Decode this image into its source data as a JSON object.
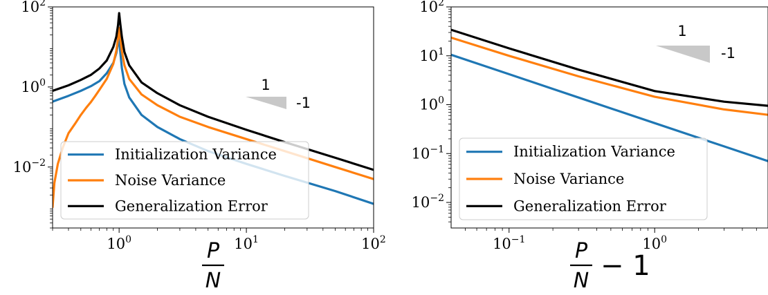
{
  "chart_data": [
    {
      "type": "line",
      "scale": {
        "x": "log",
        "y": "log"
      },
      "xlim": [
        0.3,
        100
      ],
      "ylim": [
        0.0003,
        100
      ],
      "xlabel": {
        "numerator": "P",
        "denominator": "N",
        "suffix": ""
      },
      "x_ticks": [
        {
          "value": 1,
          "base": "10",
          "exp": "0"
        },
        {
          "value": 10,
          "base": "10",
          "exp": "1"
        },
        {
          "value": 100,
          "base": "10",
          "exp": "2"
        }
      ],
      "y_ticks": [
        {
          "value": 100,
          "base": "10",
          "exp": "2"
        },
        {
          "value": 1,
          "base": "10",
          "exp": "0"
        },
        {
          "value": 0.01,
          "base": "10",
          "exp": "−2"
        }
      ],
      "series": [
        {
          "name": "Initialization Variance",
          "color": "#1f77b4",
          "x": [
            0.3,
            0.4,
            0.5,
            0.6,
            0.7,
            0.8,
            0.9,
            0.95,
            0.98,
            1.0,
            1.02,
            1.05,
            1.1,
            1.2,
            1.5,
            2,
            3,
            5,
            10,
            20,
            50,
            100
          ],
          "y": [
            0.43,
            0.6,
            0.8,
            1.05,
            1.4,
            2.2,
            4.0,
            7.0,
            12.0,
            20.0,
            8.0,
            3.0,
            1.2,
            0.55,
            0.2,
            0.1,
            0.05,
            0.025,
            0.012,
            0.006,
            0.0025,
            0.0012
          ]
        },
        {
          "name": "Noise Variance",
          "color": "#ff7f0e",
          "x": [
            0.3,
            0.31,
            0.33,
            0.36,
            0.4,
            0.45,
            0.5,
            0.55,
            0.6,
            0.65,
            0.7,
            0.8,
            0.9,
            0.95,
            0.98,
            1.0,
            1.02,
            1.05,
            1.1,
            1.2,
            1.5,
            2,
            3,
            5,
            10,
            20,
            50,
            100
          ],
          "y": [
            0.001,
            0.004,
            0.012,
            0.03,
            0.07,
            0.12,
            0.2,
            0.3,
            0.42,
            0.6,
            0.85,
            1.6,
            3.8,
            8.0,
            16.0,
            30.0,
            18.0,
            8.0,
            3.5,
            1.6,
            0.65,
            0.35,
            0.18,
            0.1,
            0.05,
            0.025,
            0.01,
            0.005
          ]
        },
        {
          "name": "Generalization Error",
          "color": "#000000",
          "x": [
            0.3,
            0.4,
            0.5,
            0.6,
            0.7,
            0.8,
            0.9,
            0.95,
            0.98,
            1.0,
            1.02,
            1.05,
            1.1,
            1.2,
            1.5,
            2,
            3,
            5,
            10,
            20,
            50,
            100
          ],
          "y": [
            0.8,
            1.1,
            1.5,
            2.0,
            2.9,
            4.6,
            10.0,
            18.0,
            35.0,
            70.0,
            40.0,
            18.0,
            7.5,
            3.5,
            1.3,
            0.7,
            0.35,
            0.18,
            0.085,
            0.042,
            0.017,
            0.0085
          ]
        }
      ],
      "legend": {
        "position": "lower-left"
      },
      "slope_triangle": {
        "run_label": "1",
        "rise_label": "-1"
      }
    },
    {
      "type": "line",
      "scale": {
        "x": "log",
        "y": "log"
      },
      "xlim": [
        0.04,
        6
      ],
      "ylim": [
        0.003,
        100
      ],
      "xlabel": {
        "numerator": "P",
        "denominator": "N",
        "suffix": "− 1"
      },
      "x_ticks": [
        {
          "value": 0.1,
          "base": "10",
          "exp": "−1"
        },
        {
          "value": 1,
          "base": "10",
          "exp": "0"
        }
      ],
      "y_ticks": [
        {
          "value": 100,
          "base": "10",
          "exp": "2"
        },
        {
          "value": 10,
          "base": "10",
          "exp": "1"
        },
        {
          "value": 1,
          "base": "10",
          "exp": "0"
        },
        {
          "value": 0.1,
          "base": "10",
          "exp": "−1"
        },
        {
          "value": 0.01,
          "base": "10",
          "exp": "−2"
        }
      ],
      "series": [
        {
          "name": "Initialization Variance",
          "color": "#1f77b4",
          "x": [
            0.04,
            0.1,
            0.3,
            1,
            3,
            6
          ],
          "y": [
            10.5,
            4.2,
            1.4,
            0.42,
            0.14,
            0.07
          ]
        },
        {
          "name": "Noise Variance",
          "color": "#ff7f0e",
          "x": [
            0.04,
            0.1,
            0.3,
            1,
            3,
            6
          ],
          "y": [
            23.5,
            10.0,
            3.8,
            1.45,
            0.8,
            0.62
          ]
        },
        {
          "name": "Generalization Error",
          "color": "#000000",
          "x": [
            0.04,
            0.1,
            0.3,
            1,
            3,
            6
          ],
          "y": [
            34.0,
            14.2,
            5.2,
            1.9,
            1.15,
            0.95
          ]
        }
      ],
      "legend": {
        "position": "lower-left"
      },
      "slope_triangle": {
        "run_label": "1",
        "rise_label": "-1"
      }
    }
  ]
}
